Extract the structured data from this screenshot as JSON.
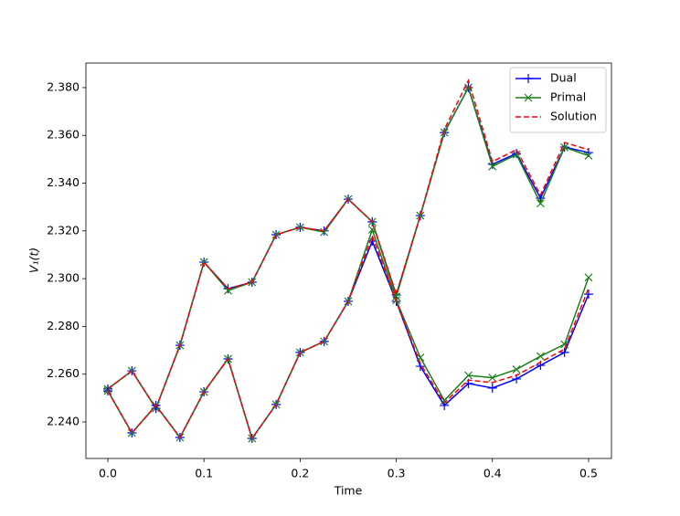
{
  "chart_data": {
    "type": "line",
    "xlabel": "Time",
    "ylabel": "V₁(t)",
    "x": [
      0,
      0.025,
      0.05,
      0.075,
      0.1,
      0.125,
      0.15,
      0.175,
      0.2,
      0.225,
      0.25,
      0.275,
      0.3,
      0.325,
      0.35,
      0.375,
      0.4,
      0.425,
      0.45,
      0.475,
      0.5
    ],
    "xlim": [
      -0.0228,
      0.5238
    ],
    "xticks": [
      {
        "value": 0,
        "label": "0.0"
      },
      0.1,
      0.2,
      0.3,
      0.4,
      {
        "value": 0.5,
        "label": "0.5"
      }
    ],
    "ylim": [
      2.2247,
      2.3903
    ],
    "yticks": [
      {
        "value": 2.24,
        "label": "2.240"
      },
      {
        "value": 2.26,
        "label": "2.260"
      },
      {
        "value": 2.28,
        "label": "2.280"
      },
      {
        "value": 2.3,
        "label": "2.300"
      },
      {
        "value": 2.32,
        "label": "2.320"
      },
      {
        "value": 2.34,
        "label": "2.340"
      },
      {
        "value": 2.36,
        "label": "2.360"
      },
      {
        "value": 2.38,
        "label": "2.380"
      }
    ],
    "legend": "upper right",
    "series": [
      {
        "name": "Dual",
        "color": "#0000ff",
        "marker": "plus",
        "dashed": false,
        "values": [
          2.2538,
          2.2614,
          2.2457,
          2.2721,
          2.3069,
          2.2958,
          2.2985,
          2.3184,
          2.3215,
          2.32,
          2.3333,
          2.3238,
          2.2932,
          2.3264,
          2.3612,
          2.38,
          2.3479,
          2.3524,
          2.3337,
          2.3551,
          2.3528
        ]
      },
      {
        "name": "Primal",
        "color": "#1a801a",
        "marker": "cross",
        "dashed": false,
        "values": [
          2.2538,
          2.2614,
          2.2457,
          2.2721,
          2.3069,
          2.295,
          2.2985,
          2.3184,
          2.3215,
          2.3195,
          2.3333,
          2.3238,
          2.2925,
          2.3264,
          2.3612,
          2.38,
          2.347,
          2.352,
          2.3315,
          2.355,
          2.3515
        ]
      },
      {
        "name": "Solution",
        "color": "#ff0000",
        "marker": "none",
        "dashed": true,
        "values": [
          2.2538,
          2.2614,
          2.2457,
          2.2721,
          2.3069,
          2.2958,
          2.2985,
          2.3184,
          2.3215,
          2.32,
          2.3333,
          2.3238,
          2.2935,
          2.3264,
          2.3625,
          2.383,
          2.349,
          2.354,
          2.335,
          2.357,
          2.354
        ]
      },
      {
        "color": "#0000ff",
        "marker": "plus",
        "dashed": false,
        "values": [
          2.253,
          2.2354,
          2.2469,
          2.2335,
          2.2526,
          2.2664,
          2.2331,
          2.2473,
          2.2691,
          2.2737,
          2.2905,
          2.3157,
          2.2905,
          2.2633,
          2.2469,
          2.2561,
          2.2542,
          2.258,
          2.2637,
          2.2691,
          2.2935
        ]
      },
      {
        "color": "#1a801a",
        "marker": "cross",
        "dashed": false,
        "values": [
          2.253,
          2.2354,
          2.2469,
          2.2335,
          2.2526,
          2.2664,
          2.2331,
          2.2473,
          2.2691,
          2.2737,
          2.2905,
          2.3205,
          2.291,
          2.267,
          2.249,
          2.2595,
          2.2585,
          2.262,
          2.2675,
          2.2725,
          2.3005
        ]
      },
      {
        "color": "#ff0000",
        "marker": "none",
        "dashed": true,
        "values": [
          2.253,
          2.2354,
          2.2469,
          2.2335,
          2.2526,
          2.2664,
          2.2331,
          2.2473,
          2.2691,
          2.2737,
          2.2905,
          2.318,
          2.2905,
          2.2645,
          2.248,
          2.2575,
          2.2565,
          2.2595,
          2.265,
          2.2705,
          2.296
        ]
      }
    ]
  }
}
